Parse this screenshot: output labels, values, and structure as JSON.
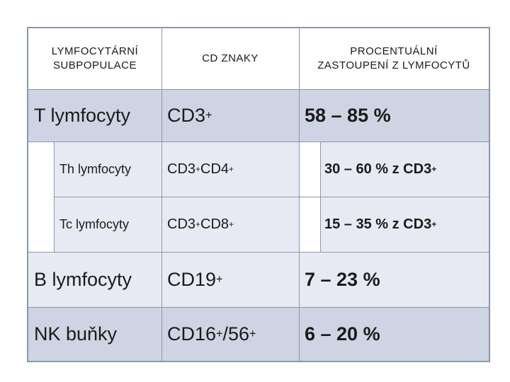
{
  "header": {
    "col1_line1": "LYMFOCYTÁRNÍ",
    "col1_line2": "SUBPOPULACE",
    "col2": "CD ZNAKY",
    "col3_line1": "PROCENTUÁLNÍ",
    "col3_line2": "ZASTOUPENÍ Z LYMFOCYTŮ"
  },
  "rows": [
    {
      "name": "T lymfocyty",
      "cd": "CD3",
      "cd_sup": "+",
      "percent": "58 – 85 %"
    },
    {
      "name": "Th lymfocyty",
      "cd1": "CD3",
      "cd1_sup": "+",
      "cd2": "CD4",
      "cd2_sup": "+",
      "percent": "30 – 60 % z CD3",
      "percent_sup": "+"
    },
    {
      "name": "Tc lymfocyty",
      "cd1": "CD3",
      "cd1_sup": "+",
      "cd2": "CD8",
      "cd2_sup": "+",
      "percent": "15 – 35 % z CD3",
      "percent_sup": "+"
    },
    {
      "name": "B lymfocyty",
      "cd": "CD19",
      "cd_sup": "+",
      "percent": "7 – 23 %"
    },
    {
      "name": "NK buňky",
      "cd1": "CD16",
      "cd1_sup": "+",
      "cd2": "/56",
      "cd2_sup": "+",
      "percent": "6 – 20 %"
    }
  ]
}
